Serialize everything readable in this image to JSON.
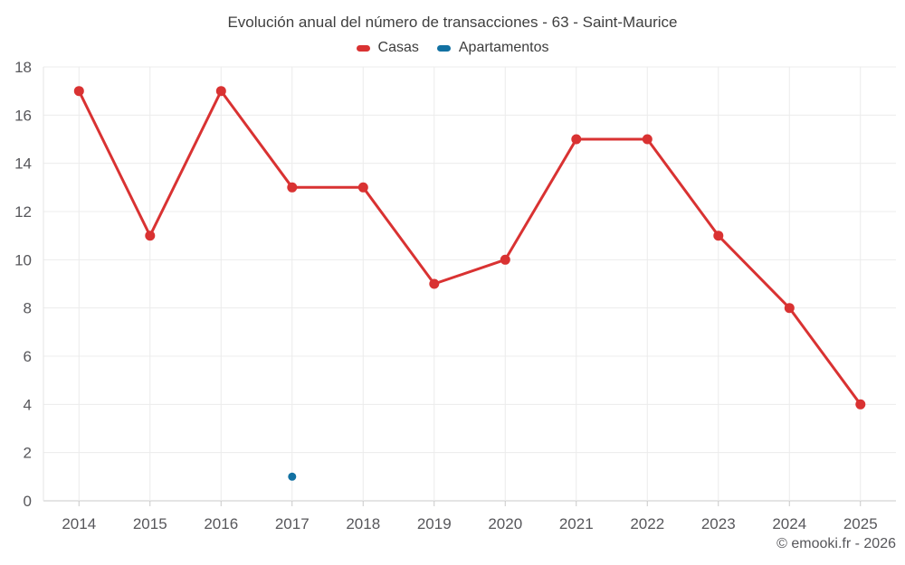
{
  "chart_data": {
    "type": "line",
    "title": "Evolución anual del número de transacciones - 63 - Saint-Maurice",
    "xlabel": "",
    "ylabel": "",
    "categories": [
      "2014",
      "2015",
      "2016",
      "2017",
      "2018",
      "2019",
      "2020",
      "2021",
      "2022",
      "2023",
      "2024",
      "2025"
    ],
    "series": [
      {
        "name": "Casas",
        "color": "#d93232",
        "point_radius": 5.5,
        "values": [
          17,
          11,
          17,
          13,
          13,
          9,
          10,
          15,
          15,
          11,
          8,
          4
        ]
      },
      {
        "name": "Apartamentos",
        "color": "#1271a2",
        "point_radius": 4.5,
        "values": [
          null,
          null,
          null,
          1,
          null,
          null,
          null,
          null,
          null,
          null,
          null,
          null
        ]
      }
    ],
    "ylim": [
      0,
      18
    ],
    "y_ticks": [
      0,
      2,
      4,
      6,
      8,
      10,
      12,
      14,
      16,
      18
    ],
    "grid": true,
    "legend_position": "top"
  },
  "footer": {
    "copyright": "© emooki.fr - 2026"
  },
  "style_colors": {
    "gridline": "#ececec",
    "axis_line": "#c9c9c9",
    "plot_border": "#e6e6e6",
    "tick_label": "#57575b"
  }
}
